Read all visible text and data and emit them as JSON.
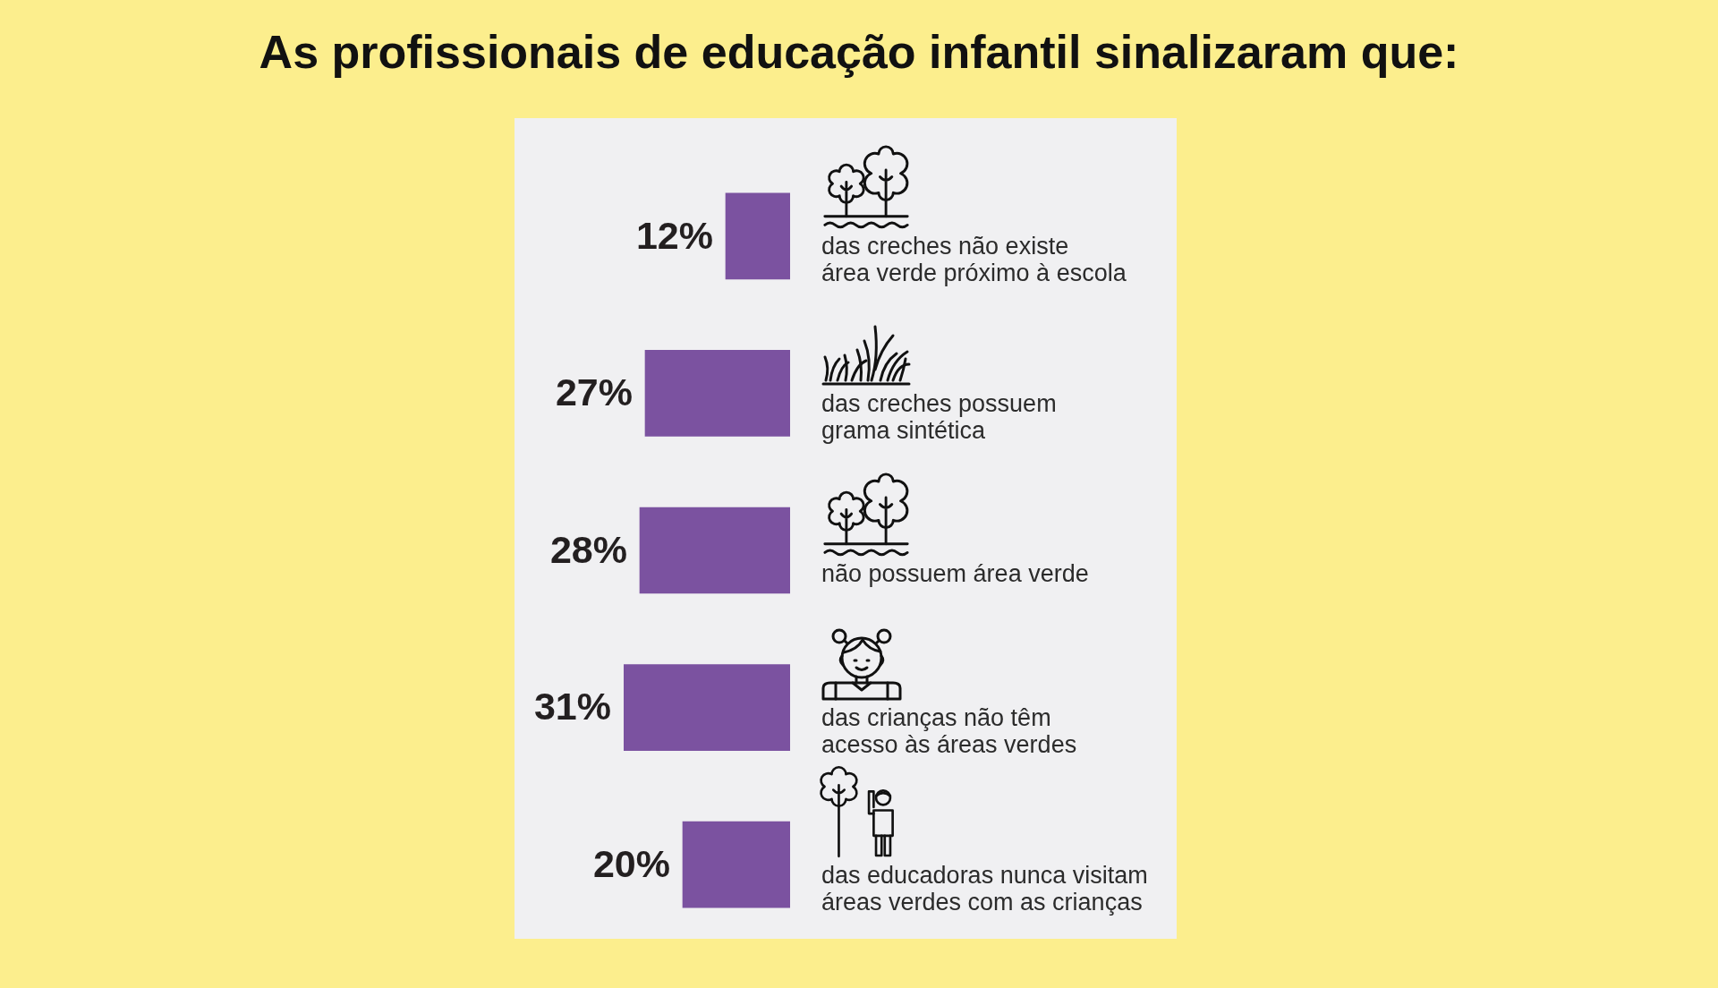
{
  "chart_data": {
    "type": "bar",
    "orientation": "horizontal",
    "title": "As profissionais de educação infantil sinalizaram que:",
    "categories": [
      "das creches não existe\nárea verde próximo à escola",
      "das creches possuem\ngrama sintética",
      "não possuem área verde",
      "das crianças não têm\nacesso às áreas verdes",
      "das educadoras nunca visitam\náreas verdes com as crianças"
    ],
    "values": [
      12,
      27,
      28,
      31,
      20
    ],
    "value_labels": [
      "12%",
      "27%",
      "28%",
      "31%",
      "20%"
    ],
    "color": "#7b52a0",
    "tick_labels": "y"
  }
}
